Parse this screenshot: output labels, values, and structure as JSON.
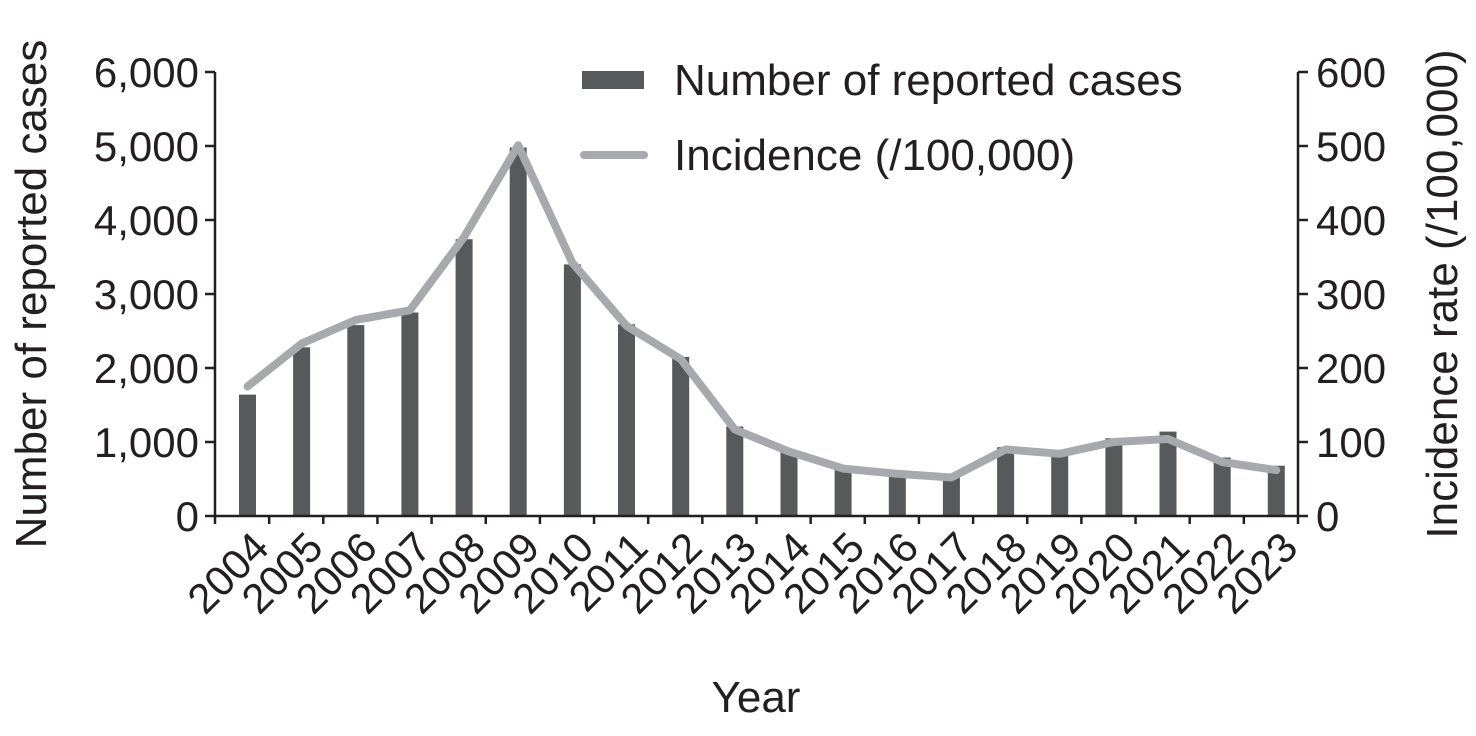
{
  "chart_data": {
    "type": "bar+line",
    "xlabel": "Year",
    "ylabel_left": "Number of reported cases",
    "ylabel_right": "Incidence rate (/100,000)",
    "categories": [
      "2004",
      "2005",
      "2006",
      "2007",
      "2008",
      "2009",
      "2010",
      "2011",
      "2012",
      "2013",
      "2014",
      "2015",
      "2016",
      "2017",
      "2018",
      "2019",
      "2020",
      "2021",
      "2022",
      "2023"
    ],
    "left_axis": {
      "min": 0,
      "max": 6000,
      "ticks": [
        0,
        1000,
        2000,
        3000,
        4000,
        5000,
        6000
      ],
      "tick_labels": [
        "0",
        "1,000",
        "2,000",
        "3,000",
        "4,000",
        "5,000",
        "6,000"
      ]
    },
    "right_axis": {
      "min": 0,
      "max": 600,
      "ticks": [
        0,
        100,
        200,
        300,
        400,
        500,
        600
      ],
      "tick_labels": [
        "0",
        "100",
        "200",
        "300",
        "400",
        "500",
        "600"
      ]
    },
    "series": [
      {
        "name": "Number of reported cases",
        "type": "bar",
        "axis": "left",
        "color": "#58595b",
        "values": [
          1640,
          2280,
          2580,
          2750,
          3740,
          4980,
          3400,
          2590,
          2150,
          1210,
          880,
          660,
          560,
          530,
          930,
          850,
          1050,
          1140,
          790,
          680
        ]
      },
      {
        "name": "Incidence (/100,000)",
        "type": "line",
        "axis": "right",
        "color": "#a7a9ac",
        "values": [
          175,
          233,
          265,
          278,
          377,
          501,
          342,
          257,
          212,
          117,
          87,
          64,
          57,
          52,
          90,
          84,
          100,
          104,
          73,
          62
        ]
      }
    ],
    "legend": {
      "position": "top-center",
      "items": [
        {
          "label": "Number of reported cases",
          "kind": "bar"
        },
        {
          "label": "Incidence (/100,000)",
          "kind": "line"
        }
      ]
    },
    "grid": false
  }
}
